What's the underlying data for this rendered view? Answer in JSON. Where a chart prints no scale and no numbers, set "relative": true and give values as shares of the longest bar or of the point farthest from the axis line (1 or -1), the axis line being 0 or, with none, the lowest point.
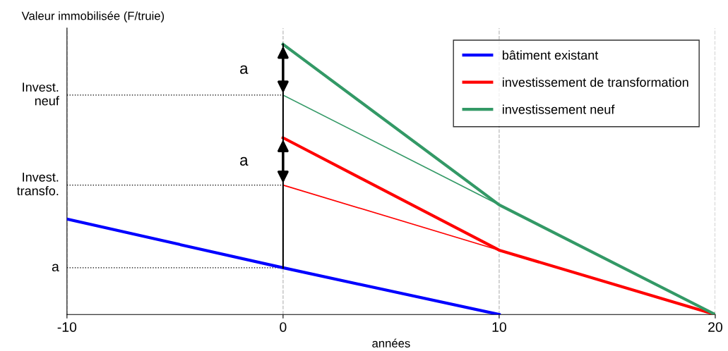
{
  "chart_data": {
    "type": "line",
    "relative": true,
    "ylabel": "Valeur immobilisée (F/truie)",
    "xlabel": "années",
    "xlim": [
      -10,
      20
    ],
    "xticks": [
      -10,
      0,
      10,
      20
    ],
    "grid": "x",
    "legend": "top right",
    "marker": "none",
    "line_style": "solid",
    "series": [
      {
        "name": "bâtiment existant",
        "color": "#0000ff",
        "x": [
          -10,
          0,
          10
        ],
        "values": [
          0.353,
          0.173,
          0
        ]
      },
      {
        "name": "investissement de transformation",
        "color": "#ff0000",
        "x": [
          0,
          10,
          20
        ],
        "values": [
          0.654,
          0.238,
          0
        ]
      },
      {
        "name": "investissement neuf",
        "color": "#339966",
        "x": [
          0,
          10,
          20
        ],
        "values": [
          1,
          0.406,
          0
        ]
      },
      {
        "color": "#ff0000",
        "x": [
          0,
          10
        ],
        "values": [
          0.479,
          0.238
        ]
      },
      {
        "color": "#339966",
        "x": [
          0,
          10
        ],
        "values": [
          0.812,
          0.406
        ]
      },
      {
        "color": "#000000",
        "x": [
          0,
          0
        ],
        "values": [
          0.173,
          1
        ]
      }
    ],
    "ref_lines": [
      {
        "axis": "y",
        "value": 0.812,
        "label": "Invest.\nneuf",
        "line_style": "dotted",
        "color": "#000000"
      },
      {
        "axis": "y",
        "value": 0.479,
        "label": "Invest.\ntransfo.",
        "line_style": "dotted",
        "color": "#000000"
      },
      {
        "axis": "y",
        "value": 0.173,
        "label": "a",
        "line_style": "dotted",
        "color": "#000000"
      }
    ],
    "annotations": [
      "a",
      "a"
    ]
  }
}
